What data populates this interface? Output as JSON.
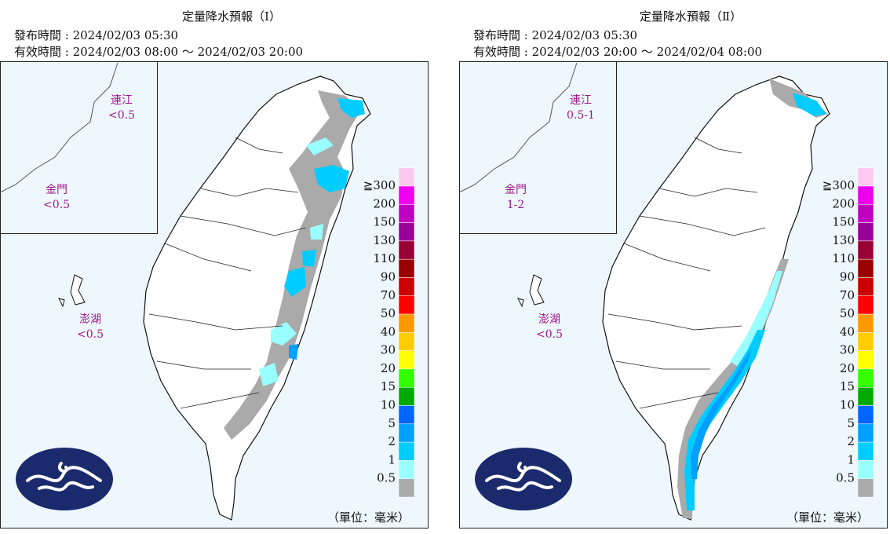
{
  "panels": [
    {
      "title": "定量降水預報（Ⅰ）",
      "issued": "發布時間 : 2024/02/03 05:30",
      "valid": "有效時間 : 2024/02/03 08:00 ～ 2024/02/03 20:00",
      "areas": [
        {
          "name": "連江",
          "value": "<0.5"
        },
        {
          "name": "金門",
          "value": "<0.5"
        },
        {
          "name": "澎湖",
          "value": "<0.5"
        }
      ],
      "unit": "（單位：毫米）"
    },
    {
      "title": "定量降水預報（Ⅱ）",
      "issued": "發布時間 : 2024/02/03 05:30",
      "valid": "有效時間 : 2024/02/03 20:00 ～ 2024/02/04 08:00",
      "areas": [
        {
          "name": "連江",
          "value": "0.5-1"
        },
        {
          "name": "金門",
          "value": "1-2"
        },
        {
          "name": "澎湖",
          "value": "<0.5"
        }
      ],
      "unit": "（單位：毫米）"
    }
  ],
  "legend": {
    "labels": [
      "≧300",
      "200",
      "150",
      "130",
      "110",
      "90",
      "70",
      "50",
      "40",
      "30",
      "20",
      "15",
      "10",
      "5",
      "2",
      "1",
      "0.5"
    ],
    "colors": [
      "#fbc8f0",
      "#f000f0",
      "#c000c0",
      "#990099",
      "#990033",
      "#990000",
      "#cc0000",
      "#ff0000",
      "#ff9900",
      "#ffcc00",
      "#ffff00",
      "#33ff00",
      "#00aa00",
      "#0066ff",
      "#00a0ff",
      "#00ccff",
      "#99ffff",
      "#aaaaaa"
    ]
  }
}
